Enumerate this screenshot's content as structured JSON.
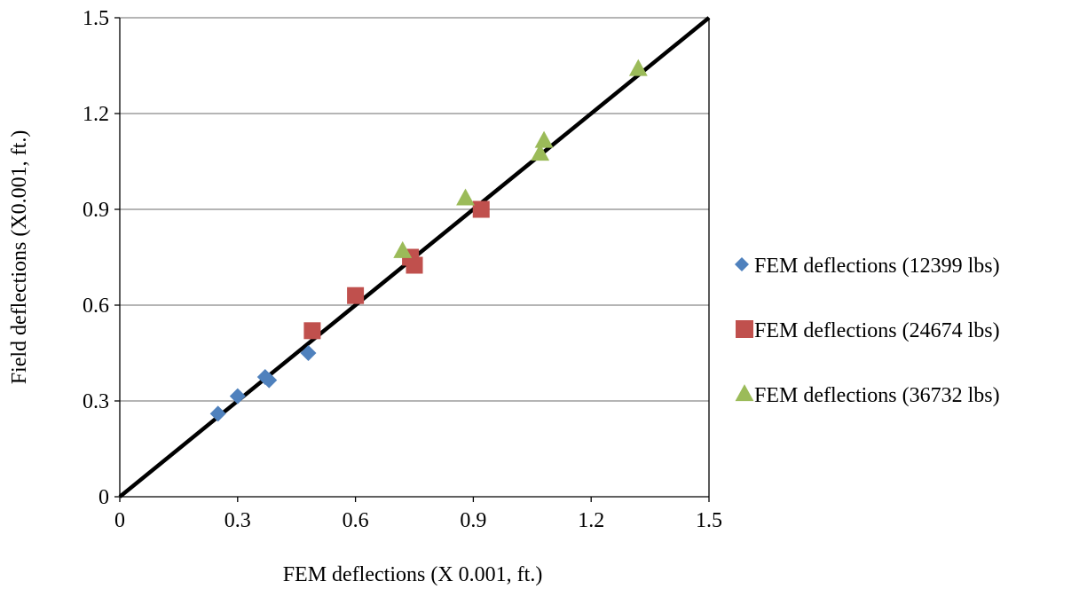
{
  "chart_data": {
    "type": "scatter",
    "title": "",
    "xlabel": "FEM deflections (X 0.001, ft.)",
    "ylabel": "Field deflections (X0.001, ft.)",
    "xlim": [
      0,
      1.5
    ],
    "ylim": [
      0,
      1.5
    ],
    "x_ticks": [
      "0",
      "0.3",
      "0.6",
      "0.9",
      "1.2",
      "1.5"
    ],
    "y_ticks": [
      "0",
      "0.3",
      "0.6",
      "0.9",
      "1.2",
      "1.5"
    ],
    "grid": "horizontal",
    "legend_position": "right",
    "reference_line": {
      "from": [
        0,
        0
      ],
      "to": [
        1.5,
        1.5
      ],
      "color": "#000000"
    },
    "series": [
      {
        "name": "FEM deflections (12399 lbs)",
        "marker": "diamond",
        "color": "#4F81BD",
        "points": [
          {
            "x": 0.25,
            "y": 0.26
          },
          {
            "x": 0.3,
            "y": 0.315
          },
          {
            "x": 0.37,
            "y": 0.375
          },
          {
            "x": 0.38,
            "y": 0.365
          },
          {
            "x": 0.48,
            "y": 0.45
          }
        ]
      },
      {
        "name": "FEM deflections (24674 lbs)",
        "marker": "square",
        "color": "#C0504D",
        "points": [
          {
            "x": 0.49,
            "y": 0.52
          },
          {
            "x": 0.6,
            "y": 0.63
          },
          {
            "x": 0.74,
            "y": 0.75
          },
          {
            "x": 0.75,
            "y": 0.725
          },
          {
            "x": 0.92,
            "y": 0.9
          }
        ]
      },
      {
        "name": "FEM deflections (36732 lbs)",
        "marker": "triangle",
        "color": "#9BBB59",
        "points": [
          {
            "x": 0.72,
            "y": 0.77
          },
          {
            "x": 0.88,
            "y": 0.935
          },
          {
            "x": 1.07,
            "y": 1.075
          },
          {
            "x": 1.08,
            "y": 1.115
          },
          {
            "x": 1.32,
            "y": 1.34
          }
        ]
      }
    ]
  }
}
